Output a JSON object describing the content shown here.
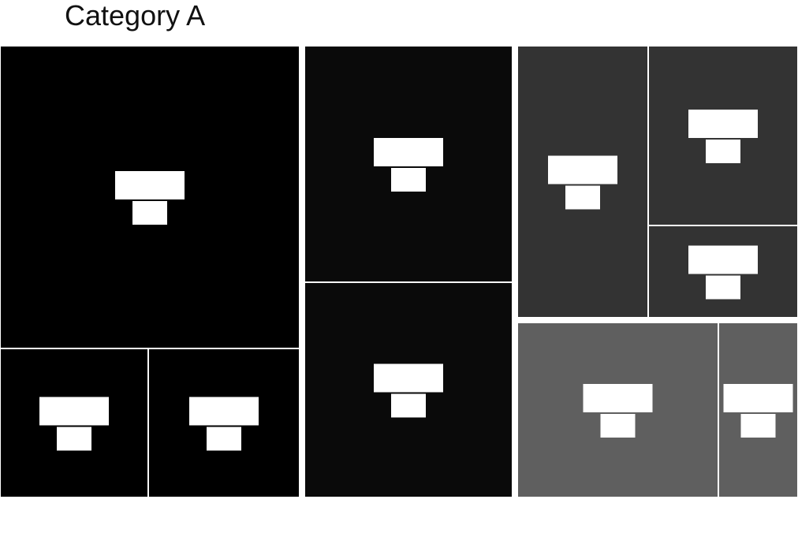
{
  "chart_data": {
    "type": "treemap",
    "title": "Category A",
    "colors": {
      "group_1": "#000000",
      "group_2": "#0a0a0a",
      "group_3": "#333333",
      "group_4": "#5f5f5f",
      "divider": "#ffffff",
      "label_mask": "#ffffff"
    },
    "groups": [
      {
        "id": "group-1",
        "color": "#000000",
        "cells": [
          {
            "id": "cell-1a",
            "value": 144
          },
          {
            "id": "cell-1b",
            "value": 34
          },
          {
            "id": "cell-1c",
            "value": 34
          }
        ]
      },
      {
        "id": "group-2",
        "color": "#0a0a0a",
        "cells": [
          {
            "id": "cell-2a",
            "value": 78
          },
          {
            "id": "cell-2b",
            "value": 71
          }
        ]
      },
      {
        "id": "group-3",
        "color": "#333333",
        "cells": [
          {
            "id": "cell-3a",
            "value": 57
          },
          {
            "id": "cell-3b",
            "value": 40
          },
          {
            "id": "cell-3c",
            "value": 20
          }
        ]
      },
      {
        "id": "group-4",
        "color": "#5f5f5f",
        "cells": [
          {
            "id": "cell-4a",
            "value": 43
          },
          {
            "id": "cell-4b",
            "value": 17
          }
        ]
      }
    ]
  }
}
